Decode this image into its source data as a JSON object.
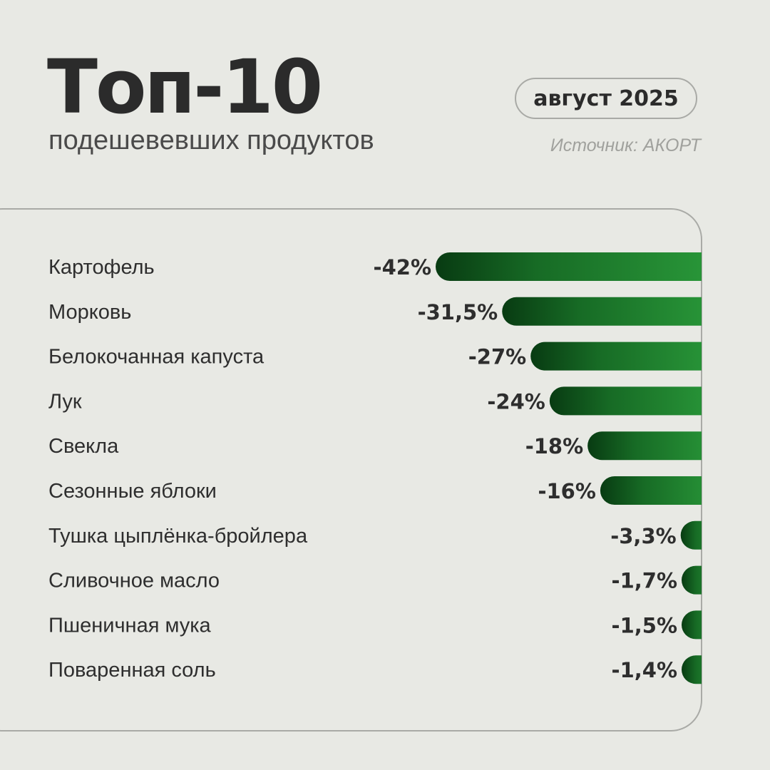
{
  "header": {
    "title": "Топ-10",
    "subtitle": "подешевевших продуктов",
    "date": "август 2025",
    "source": "Источник: АКОРТ"
  },
  "colors": {
    "background": "#e8e9e4",
    "bar_dark": "#083b12",
    "bar_light": "#2a9a3a",
    "text": "#2b2b2b"
  },
  "chart_data": {
    "type": "bar",
    "orientation": "horizontal",
    "categories": [
      "Картофель",
      "Морковь",
      "Белокочанная капуста",
      "Лук",
      "Свекла",
      "Сезонные яблоки",
      "Тушка цыплёнка-бройлера",
      "Сливочное масло",
      "Пшеничная мука",
      "Поваренная соль"
    ],
    "values": [
      -42,
      -31.5,
      -27,
      -24,
      -18,
      -16,
      -3.3,
      -1.7,
      -1.5,
      -1.4
    ],
    "value_labels": [
      "-42%",
      "-31,5%",
      "-27%",
      "-24%",
      "-18%",
      "-16%",
      "-3,3%",
      "-1,7%",
      "-1,5%",
      "-1,4%"
    ],
    "unit": "%",
    "grid": false,
    "legend": "none"
  }
}
